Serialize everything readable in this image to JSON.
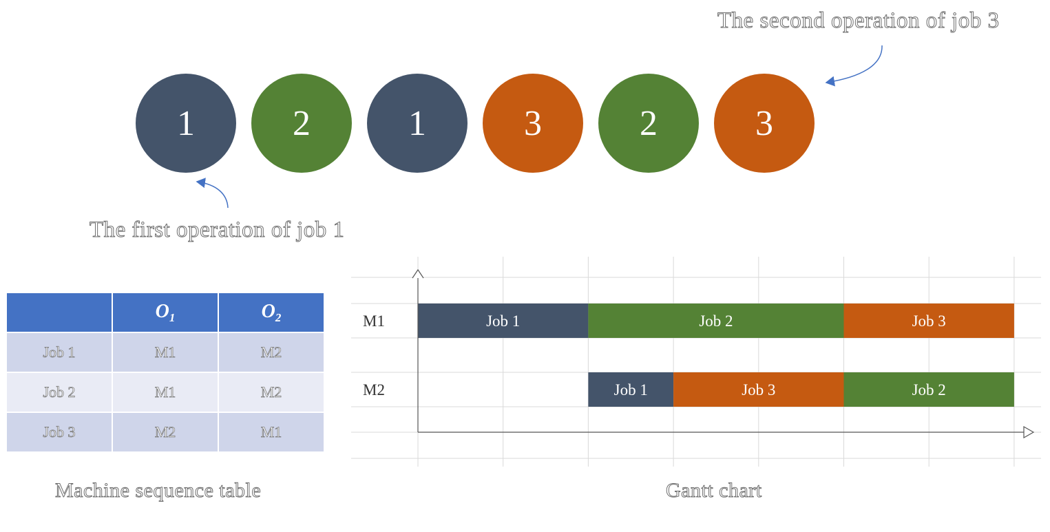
{
  "colors": {
    "job1": "#44546a",
    "job2": "#548235",
    "job3": "#c55a11",
    "header": "#4472c4",
    "arrow": "#4472c4"
  },
  "sequence": [
    {
      "label": "1",
      "job": "job1"
    },
    {
      "label": "2",
      "job": "job2"
    },
    {
      "label": "1",
      "job": "job1"
    },
    {
      "label": "3",
      "job": "job3"
    },
    {
      "label": "2",
      "job": "job2"
    },
    {
      "label": "3",
      "job": "job3"
    }
  ],
  "annotations": {
    "second_op": "The second operation of job 3",
    "first_op": "The first operation of job 1"
  },
  "table": {
    "header": {
      "o": "O",
      "sub1": "1",
      "sub2": "2"
    },
    "rows": [
      {
        "job": "Job 1",
        "o1": "M1",
        "o2": "M2"
      },
      {
        "job": "Job 2",
        "o1": "M1",
        "o2": "M2"
      },
      {
        "job": "Job 3",
        "o1": "M2",
        "o2": "M1"
      }
    ],
    "caption": "Machine sequence table"
  },
  "chart_data": {
    "type": "gantt",
    "machines": [
      "M1",
      "M2"
    ],
    "tasks": [
      {
        "machine": "M1",
        "label": "Job 1",
        "job": "job1",
        "start": 0,
        "end": 2
      },
      {
        "machine": "M1",
        "label": "Job 2",
        "job": "job2",
        "start": 2,
        "end": 5
      },
      {
        "machine": "M1",
        "label": "Job 3",
        "job": "job3",
        "start": 5,
        "end": 7
      },
      {
        "machine": "M2",
        "label": "Job 1",
        "job": "job1",
        "start": 2,
        "end": 3
      },
      {
        "machine": "M2",
        "label": "Job 3",
        "job": "job3",
        "start": 3,
        "end": 5
      },
      {
        "machine": "M2",
        "label": "Job 2",
        "job": "job2",
        "start": 5,
        "end": 7
      }
    ],
    "xlim": [
      0,
      7
    ],
    "grid": true,
    "caption": "Gantt chart"
  }
}
